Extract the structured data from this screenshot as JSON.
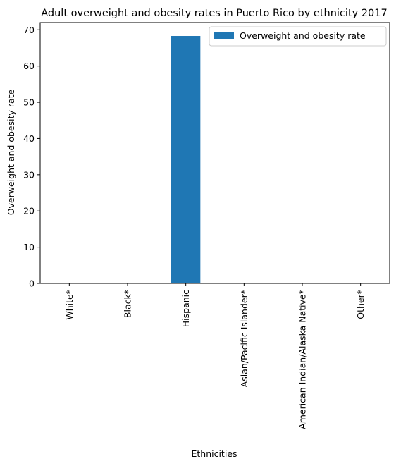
{
  "chart_data": {
    "type": "bar",
    "title": "Adult overweight and obesity rates in Puerto Rico by ethnicity 2017",
    "xlabel": "Ethnicities",
    "ylabel": "Overweight and obesity rate",
    "categories": [
      "White*",
      "Black*",
      "Hispanic",
      "Asian/Pacific Islander*",
      "American Indian/Alaska Native*",
      "Other*"
    ],
    "series": [
      {
        "name": "Overweight and obesity rate",
        "values": [
          0,
          0,
          68.3,
          0,
          0,
          0
        ],
        "color": "#1f77b4"
      }
    ],
    "ylim": [
      0,
      72
    ],
    "yticks": [
      0,
      10,
      20,
      30,
      40,
      50,
      60,
      70
    ],
    "grid": false,
    "legend_position": "top-right"
  }
}
